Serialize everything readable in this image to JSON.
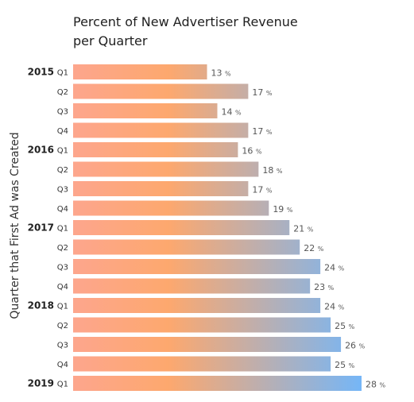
{
  "chart_data": {
    "type": "bar",
    "orientation": "horizontal",
    "title_lines": [
      "Percent of New Advertiser Revenue",
      "per Quarter"
    ],
    "xlabel": "",
    "ylabel": "Quarter that First Ad was Created",
    "xlim": [
      0,
      28
    ],
    "grid": false,
    "value_suffix": "%",
    "categories": [
      {
        "year": "2015",
        "quarter": "Q1"
      },
      {
        "year": "",
        "quarter": "Q2"
      },
      {
        "year": "",
        "quarter": "Q3"
      },
      {
        "year": "",
        "quarter": "Q4"
      },
      {
        "year": "2016",
        "quarter": "Q1"
      },
      {
        "year": "",
        "quarter": "Q2"
      },
      {
        "year": "",
        "quarter": "Q3"
      },
      {
        "year": "",
        "quarter": "Q4"
      },
      {
        "year": "2017",
        "quarter": "Q1"
      },
      {
        "year": "",
        "quarter": "Q2"
      },
      {
        "year": "",
        "quarter": "Q3"
      },
      {
        "year": "",
        "quarter": "Q4"
      },
      {
        "year": "2018",
        "quarter": "Q1"
      },
      {
        "year": "",
        "quarter": "Q2"
      },
      {
        "year": "",
        "quarter": "Q3"
      },
      {
        "year": "",
        "quarter": "Q4"
      },
      {
        "year": "2019",
        "quarter": "Q1"
      }
    ],
    "values": [
      13,
      17,
      14,
      17,
      16,
      18,
      17,
      19,
      21,
      22,
      24,
      23,
      24,
      25,
      26,
      25,
      28
    ],
    "gradient_colors": [
      "#FDA68D",
      "#FDA86E",
      "#75B6F7"
    ]
  }
}
